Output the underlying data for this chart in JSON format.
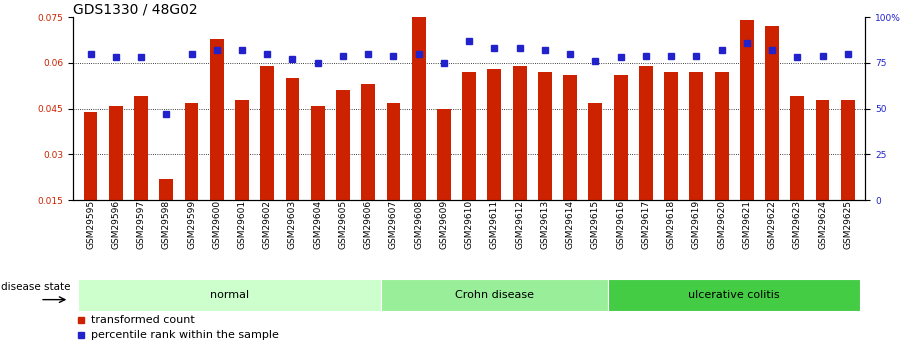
{
  "title": "GDS1330 / 48G02",
  "samples": [
    "GSM29595",
    "GSM29596",
    "GSM29597",
    "GSM29598",
    "GSM29599",
    "GSM29600",
    "GSM29601",
    "GSM29602",
    "GSM29603",
    "GSM29604",
    "GSM29605",
    "GSM29606",
    "GSM29607",
    "GSM29608",
    "GSM29609",
    "GSM29610",
    "GSM29611",
    "GSM29612",
    "GSM29613",
    "GSM29614",
    "GSM29615",
    "GSM29616",
    "GSM29617",
    "GSM29618",
    "GSM29619",
    "GSM29620",
    "GSM29621",
    "GSM29622",
    "GSM29623",
    "GSM29624",
    "GSM29625"
  ],
  "bar_values": [
    0.044,
    0.046,
    0.049,
    0.022,
    0.047,
    0.068,
    0.048,
    0.059,
    0.055,
    0.046,
    0.051,
    0.053,
    0.047,
    0.075,
    0.045,
    0.057,
    0.058,
    0.059,
    0.057,
    0.056,
    0.047,
    0.056,
    0.059,
    0.057,
    0.057,
    0.057,
    0.074,
    0.072,
    0.049,
    0.048,
    0.048
  ],
  "dot_values": [
    80,
    78,
    78,
    47,
    80,
    82,
    82,
    80,
    77,
    75,
    79,
    80,
    79,
    80,
    75,
    87,
    83,
    83,
    82,
    80,
    76,
    78,
    79,
    79,
    79,
    82,
    86,
    82,
    78,
    79,
    80
  ],
  "groups": [
    {
      "label": "normal",
      "start": 0,
      "end": 12,
      "color": "#ccffcc"
    },
    {
      "label": "Crohn disease",
      "start": 12,
      "end": 21,
      "color": "#99ee99"
    },
    {
      "label": "ulcerative colitis",
      "start": 21,
      "end": 31,
      "color": "#44cc44"
    }
  ],
  "ylim_left": [
    0.015,
    0.075
  ],
  "ylim_right": [
    0,
    100
  ],
  "yticks_left": [
    0.015,
    0.03,
    0.045,
    0.06,
    0.075
  ],
  "yticks_right": [
    0,
    25,
    50,
    75,
    100
  ],
  "bar_color": "#cc2200",
  "dot_color": "#2222cc",
  "bg_color": "#ffffff",
  "disease_state_label": "disease state",
  "legend_bar": "transformed count",
  "legend_dot": "percentile rank within the sample",
  "title_fontsize": 10,
  "tick_fontsize": 6.5,
  "label_fontsize": 8
}
